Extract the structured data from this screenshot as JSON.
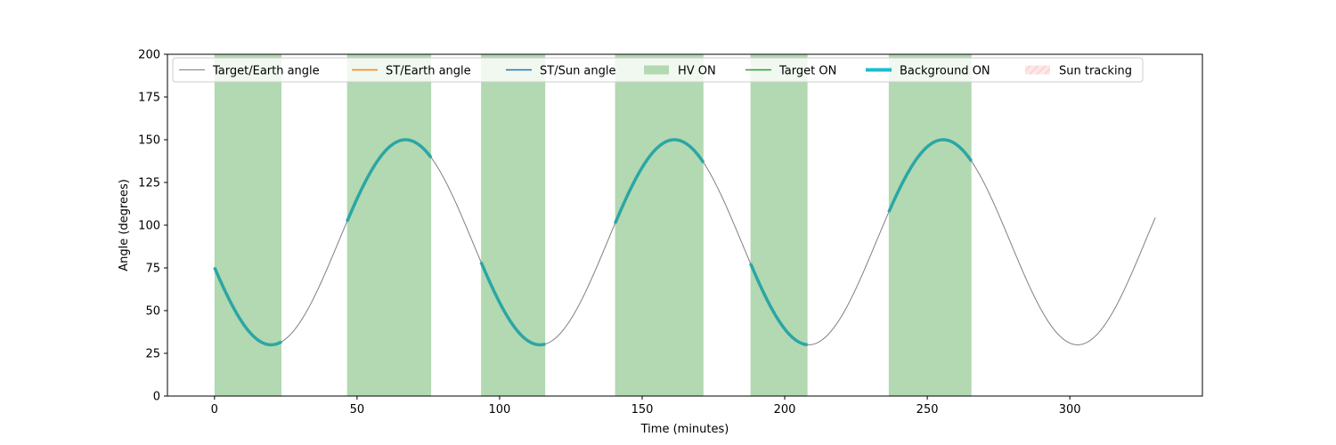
{
  "chart_data": {
    "type": "line",
    "title": "",
    "xlabel": "Time (minutes)",
    "ylabel": "Angle (degrees)",
    "xlim": [
      -16.5,
      346.5
    ],
    "ylim": [
      0,
      200
    ],
    "xticks": [
      0,
      50,
      100,
      150,
      200,
      250,
      300
    ],
    "yticks": [
      0,
      25,
      50,
      75,
      100,
      125,
      150,
      175,
      200
    ],
    "grid": false,
    "legend_placement": "top-left",
    "legend": [
      {
        "label": "Target/Earth angle",
        "kind": "line",
        "color": "#808080"
      },
      {
        "label": "ST/Earth angle",
        "kind": "line",
        "color": "#ff7f0e"
      },
      {
        "label": "ST/Sun angle",
        "kind": "line",
        "color": "#1f77b4"
      },
      {
        "label": "HV ON",
        "kind": "patch",
        "color": "#b2d9b2"
      },
      {
        "label": "Target ON",
        "kind": "line",
        "color": "#2ca02c"
      },
      {
        "label": "Background ON",
        "kind": "thickline",
        "color": "#17becf"
      },
      {
        "label": "Sun tracking",
        "kind": "hatch",
        "color": "#ffcccc"
      }
    ],
    "series": [
      {
        "name": "Target/Earth angle",
        "style": "sine",
        "x_range": [
          0,
          330
        ],
        "mean": 90,
        "amplitude": 60,
        "period_minutes": 94.3,
        "peak_at_minutes": 67,
        "color": "#808080"
      },
      {
        "name": "Background ON",
        "color": "#17becf",
        "segments": [
          [
            0,
            23.5
          ],
          [
            46.5,
            76
          ],
          [
            93.5,
            116
          ],
          [
            140.5,
            171.5
          ],
          [
            188,
            208
          ],
          [
            236.5,
            265.5
          ]
        ]
      }
    ],
    "hv_on_intervals": [
      [
        0,
        23.5
      ],
      [
        46.5,
        76
      ],
      [
        93.5,
        116
      ],
      [
        140.5,
        171.5
      ],
      [
        188,
        208
      ],
      [
        236.5,
        265.5
      ]
    ],
    "colors": {
      "hv_on": "#b2d9b2",
      "target_earth": "#808080",
      "background_on": "#2ca6a4",
      "axis": "#000000"
    }
  }
}
